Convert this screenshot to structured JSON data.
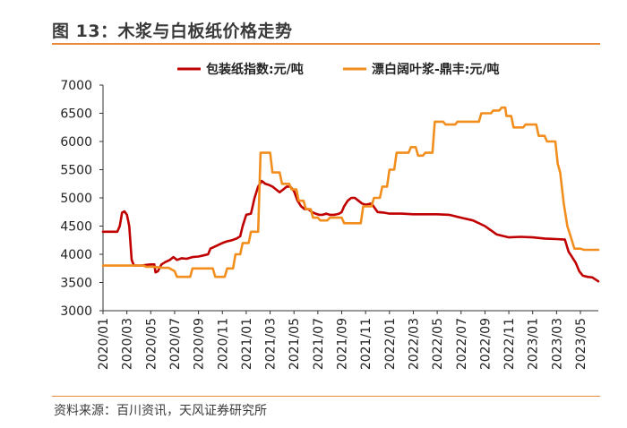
{
  "title": "图 13：木浆与白板纸价格走势",
  "source": "资料来源：百川资讯，天风证券研究所",
  "colors": {
    "series1": "#c00000",
    "series2": "#f28e1e",
    "accent": "#e98a3a"
  },
  "chart_data": {
    "type": "line",
    "title": "图 13：木浆与白板纸价格走势",
    "xlabel": "",
    "ylabel": "",
    "ylim": [
      3000,
      7000
    ],
    "yticks": [
      3000,
      3500,
      4000,
      4500,
      5000,
      5500,
      6000,
      6500,
      7000
    ],
    "xlim": [
      0,
      41.5
    ],
    "xtick_labels": [
      "2020/01",
      "2020/03",
      "2020/05",
      "2020/07",
      "2020/09",
      "2020/11",
      "2021/01",
      "2021/03",
      "2021/05",
      "2021/07",
      "2021/09",
      "2021/11",
      "2022/01",
      "2022/03",
      "2022/05",
      "2022/07",
      "2022/09",
      "2022/11",
      "2023/01",
      "2023/03",
      "2023/05"
    ],
    "legend_position": "top",
    "series": [
      {
        "name": "包装纸指数:元/吨",
        "color": "#c00000",
        "points": [
          [
            0,
            4400
          ],
          [
            1.2,
            4400
          ],
          [
            1.4,
            4500
          ],
          [
            1.6,
            4740
          ],
          [
            1.8,
            4760
          ],
          [
            2.0,
            4700
          ],
          [
            2.2,
            4500
          ],
          [
            2.4,
            3900
          ],
          [
            2.6,
            3800
          ],
          [
            3.2,
            3800
          ],
          [
            4.0,
            3820
          ],
          [
            4.3,
            3820
          ],
          [
            4.4,
            3680
          ],
          [
            4.6,
            3700
          ],
          [
            4.9,
            3820
          ],
          [
            5.2,
            3860
          ],
          [
            5.6,
            3900
          ],
          [
            5.9,
            3950
          ],
          [
            6.2,
            3900
          ],
          [
            6.6,
            3930
          ],
          [
            7.0,
            3920
          ],
          [
            7.5,
            3950
          ],
          [
            8.0,
            3960
          ],
          [
            8.4,
            3980
          ],
          [
            8.8,
            4000
          ],
          [
            9.0,
            4100
          ],
          [
            9.5,
            4150
          ],
          [
            10.0,
            4200
          ],
          [
            10.4,
            4230
          ],
          [
            10.8,
            4250
          ],
          [
            11.2,
            4280
          ],
          [
            11.5,
            4320
          ],
          [
            11.7,
            4500
          ],
          [
            12.0,
            4700
          ],
          [
            12.4,
            4720
          ],
          [
            12.7,
            5000
          ],
          [
            13.0,
            5200
          ],
          [
            13.3,
            5300
          ],
          [
            13.6,
            5250
          ],
          [
            13.9,
            5230
          ],
          [
            14.2,
            5200
          ],
          [
            14.5,
            5150
          ],
          [
            14.8,
            5100
          ],
          [
            15.1,
            5150
          ],
          [
            15.4,
            5200
          ],
          [
            15.7,
            5200
          ],
          [
            16.0,
            5120
          ],
          [
            16.3,
            4950
          ],
          [
            16.6,
            4850
          ],
          [
            16.9,
            4800
          ],
          [
            17.2,
            4800
          ],
          [
            17.5,
            4750
          ],
          [
            17.8,
            4720
          ],
          [
            18.1,
            4700
          ],
          [
            18.4,
            4700
          ],
          [
            18.7,
            4720
          ],
          [
            19.0,
            4700
          ],
          [
            19.4,
            4700
          ],
          [
            19.8,
            4720
          ],
          [
            20.0,
            4750
          ],
          [
            20.2,
            4850
          ],
          [
            20.5,
            4950
          ],
          [
            20.8,
            5000
          ],
          [
            21.1,
            5000
          ],
          [
            21.4,
            4950
          ],
          [
            21.7,
            4900
          ],
          [
            22.0,
            4880
          ],
          [
            22.5,
            4900
          ],
          [
            23.0,
            4750
          ],
          [
            23.5,
            4740
          ],
          [
            24.0,
            4720
          ],
          [
            25.0,
            4720
          ],
          [
            26.0,
            4710
          ],
          [
            27.0,
            4710
          ],
          [
            28.0,
            4710
          ],
          [
            29.0,
            4700
          ],
          [
            30.0,
            4650
          ],
          [
            31.0,
            4600
          ],
          [
            32.0,
            4500
          ],
          [
            33.0,
            4350
          ],
          [
            34.0,
            4300
          ],
          [
            35.0,
            4310
          ],
          [
            36.0,
            4300
          ],
          [
            37.0,
            4280
          ],
          [
            38.0,
            4270
          ],
          [
            38.7,
            4260
          ],
          [
            39.0,
            4050
          ],
          [
            39.3,
            3950
          ],
          [
            39.6,
            3850
          ],
          [
            39.9,
            3700
          ],
          [
            40.2,
            3620
          ],
          [
            40.6,
            3600
          ],
          [
            41.0,
            3590
          ],
          [
            41.5,
            3520
          ]
        ]
      },
      {
        "name": "漂白阔叶浆-鼎丰:元/吨",
        "color": "#f28e1e",
        "points": [
          [
            0,
            3800
          ],
          [
            3.4,
            3800
          ],
          [
            3.6,
            3780
          ],
          [
            4.2,
            3780
          ],
          [
            5.0,
            3760
          ],
          [
            5.5,
            3760
          ],
          [
            6.0,
            3700
          ],
          [
            6.2,
            3600
          ],
          [
            7.3,
            3600
          ],
          [
            7.5,
            3750
          ],
          [
            9.2,
            3750
          ],
          [
            9.4,
            3600
          ],
          [
            10.2,
            3600
          ],
          [
            10.4,
            3750
          ],
          [
            10.9,
            3750
          ],
          [
            11.1,
            4000
          ],
          [
            11.5,
            4000
          ],
          [
            11.7,
            4200
          ],
          [
            12.2,
            4200
          ],
          [
            12.4,
            4400
          ],
          [
            13.0,
            4400
          ],
          [
            13.2,
            5800
          ],
          [
            14.0,
            5800
          ],
          [
            14.2,
            5450
          ],
          [
            14.8,
            5450
          ],
          [
            15.0,
            5250
          ],
          [
            15.6,
            5250
          ],
          [
            15.8,
            5150
          ],
          [
            16.2,
            5150
          ],
          [
            16.4,
            4950
          ],
          [
            16.8,
            4950
          ],
          [
            17.0,
            4800
          ],
          [
            17.4,
            4800
          ],
          [
            17.6,
            4650
          ],
          [
            18.0,
            4650
          ],
          [
            18.2,
            4600
          ],
          [
            18.8,
            4600
          ],
          [
            19.0,
            4650
          ],
          [
            20.0,
            4650
          ],
          [
            20.2,
            4550
          ],
          [
            21.6,
            4550
          ],
          [
            21.8,
            4850
          ],
          [
            22.5,
            4850
          ],
          [
            22.7,
            5000
          ],
          [
            23.2,
            5000
          ],
          [
            23.4,
            5200
          ],
          [
            23.8,
            5200
          ],
          [
            24.0,
            5500
          ],
          [
            24.4,
            5500
          ],
          [
            24.6,
            5800
          ],
          [
            25.6,
            5800
          ],
          [
            25.8,
            5900
          ],
          [
            26.2,
            5900
          ],
          [
            26.4,
            5750
          ],
          [
            26.8,
            5750
          ],
          [
            27.0,
            5800
          ],
          [
            27.6,
            5800
          ],
          [
            27.8,
            6350
          ],
          [
            28.5,
            6350
          ],
          [
            28.7,
            6300
          ],
          [
            29.5,
            6300
          ],
          [
            29.7,
            6350
          ],
          [
            31.5,
            6350
          ],
          [
            31.7,
            6500
          ],
          [
            32.5,
            6500
          ],
          [
            32.7,
            6550
          ],
          [
            33.2,
            6550
          ],
          [
            33.4,
            6600
          ],
          [
            33.7,
            6600
          ],
          [
            33.8,
            6450
          ],
          [
            34.2,
            6450
          ],
          [
            34.4,
            6250
          ],
          [
            35.2,
            6250
          ],
          [
            35.4,
            6300
          ],
          [
            36.3,
            6300
          ],
          [
            36.5,
            6100
          ],
          [
            37.0,
            6100
          ],
          [
            37.2,
            6000
          ],
          [
            37.9,
            6000
          ],
          [
            38.1,
            5600
          ],
          [
            38.3,
            5450
          ],
          [
            38.6,
            4900
          ],
          [
            38.9,
            4500
          ],
          [
            39.2,
            4300
          ],
          [
            39.5,
            4100
          ],
          [
            40.0,
            4100
          ],
          [
            40.3,
            4080
          ],
          [
            41.5,
            4080
          ]
        ]
      }
    ]
  }
}
